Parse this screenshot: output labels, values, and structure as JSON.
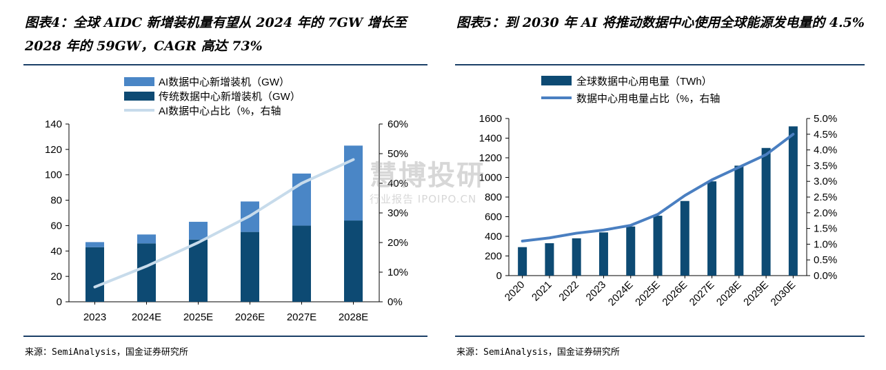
{
  "left_chart": {
    "title": "图表4：全球 AIDC 新增装机量有望从 2024 年的 7GW 增长至 2028 年的 59GW，CAGR 高达 73%",
    "source": "来源：SemiAnalysis，国金证券研究所"
  },
  "right_chart": {
    "title": "图表5：到 2030 年 AI 将推动数据中心使用全球能源发电量的 4.5%",
    "source": "来源：SemiAnalysis，国金证券研究所"
  },
  "watermark": {
    "main": "慧博投研",
    "sub": "行业报告 IPOIPO.CN"
  },
  "colors": {
    "dark_blue": "#0d4a73",
    "light_blue": "#4a86c6",
    "pale_line": "#c7dbeb",
    "line_blue": "#4a7fc1",
    "rule": "#1a3e66"
  },
  "chart_data": [
    {
      "type": "bar",
      "stacked": true,
      "categories": [
        "2023",
        "2024E",
        "2025E",
        "2026E",
        "2027E",
        "2028E"
      ],
      "series": [
        {
          "name": "传统数据中心新增装机（GW）",
          "values": [
            43,
            46,
            49,
            55,
            60,
            64
          ],
          "color": "#0d4a73"
        },
        {
          "name": "AI数据中心新增装机（GW）",
          "values": [
            4,
            7,
            14,
            24,
            41,
            59
          ],
          "color": "#4a86c6"
        },
        {
          "name": "AI数据中心占比（%，右轴",
          "type": "line",
          "axis": "right",
          "values": [
            5,
            12,
            20,
            29,
            40,
            48
          ],
          "color": "#c7dbeb"
        }
      ],
      "legend_order": [
        "AI数据中心新增装机（GW）",
        "传统数据中心新增装机（GW）",
        "AI数据中心占比（%，右轴"
      ],
      "ylim": [
        0,
        140
      ],
      "yticks": [
        "0",
        "20",
        "40",
        "60",
        "80",
        "100",
        "120",
        "140"
      ],
      "y2lim": [
        0,
        60
      ],
      "y2ticks": [
        "0%",
        "10%",
        "20%",
        "30%",
        "40%",
        "50%",
        "60%"
      ],
      "legend_position": "top",
      "grid": false
    },
    {
      "type": "bar",
      "categories": [
        "2020",
        "2021",
        "2022",
        "2023",
        "2024E",
        "2025E",
        "2026E",
        "2027E",
        "2028E",
        "2029E",
        "2030E"
      ],
      "series": [
        {
          "name": "全球数据中心用电量（TWh）",
          "values": [
            290,
            330,
            380,
            440,
            500,
            610,
            760,
            960,
            1120,
            1300,
            1520
          ],
          "color": "#0d4a73"
        },
        {
          "name": "数据中心用电量占比（%，右轴",
          "type": "line",
          "axis": "right",
          "values": [
            1.1,
            1.2,
            1.35,
            1.45,
            1.6,
            1.95,
            2.55,
            3.05,
            3.45,
            3.85,
            4.5
          ],
          "color": "#4a7fc1"
        }
      ],
      "ylim": [
        0,
        1600
      ],
      "yticks": [
        "0",
        "200",
        "400",
        "600",
        "800",
        "1000",
        "1200",
        "1400",
        "1600"
      ],
      "y2lim": [
        0,
        5
      ],
      "y2ticks": [
        "0.0%",
        "0.5%",
        "1.0%",
        "1.5%",
        "2.0%",
        "2.5%",
        "3.0%",
        "3.5%",
        "4.0%",
        "4.5%",
        "5.0%"
      ],
      "legend_position": "top",
      "grid": false
    }
  ]
}
